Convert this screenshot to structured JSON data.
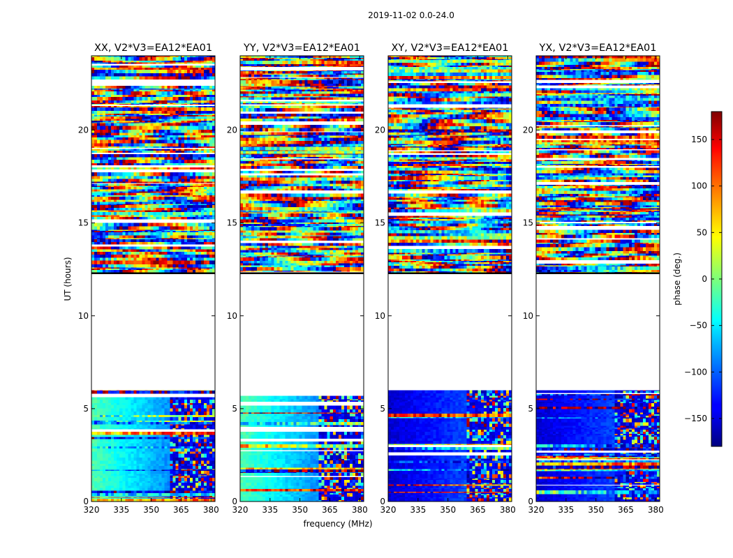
{
  "chart_data": {
    "type": "heatmap",
    "suptitle": "2019-11-02 0.0-24.0",
    "xlabel": "frequency (MHz)",
    "ylabel": "UT (hours)",
    "xlim": [
      320,
      382
    ],
    "ylim": [
      0,
      24
    ],
    "xticks": [
      320,
      335,
      350,
      365,
      380
    ],
    "yticks": [
      0,
      5,
      10,
      15,
      20
    ],
    "panels": [
      {
        "title": "XX, V2*V3=EA12*EA01",
        "product": "XX"
      },
      {
        "title": "YY, V2*V3=EA12*EA01",
        "product": "YY"
      },
      {
        "title": "XY, V2*V3=EA12*EA01",
        "product": "XY"
      },
      {
        "title": "YX, V2*V3=EA12*EA01",
        "product": "YX"
      }
    ],
    "observed_time_ranges": [
      [
        0,
        6.0
      ],
      [
        12.3,
        24.0
      ]
    ],
    "flagged_time_ranges": [
      [
        6.0,
        12.3
      ]
    ],
    "colorbar": {
      "label": "phase (deg.)",
      "vmin": -180,
      "vmax": 180,
      "ticks": [
        -150,
        -100,
        -50,
        0,
        50,
        100,
        150
      ],
      "colormap": "jet"
    }
  }
}
